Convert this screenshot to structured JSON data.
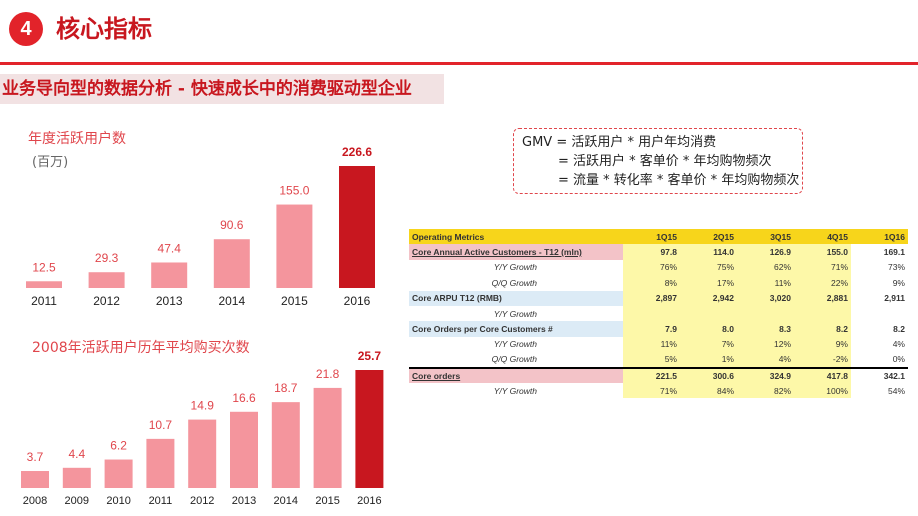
{
  "header": {
    "number": "4",
    "title": "核心指标"
  },
  "subtitle": "业务导向型的数据分析 - 快速成长中的消费驱动型企业",
  "chart1": {
    "title": "年度活跃用户数",
    "unit": "(百万)"
  },
  "chart2": {
    "title": "2008年活跃用户历年平均购买次数"
  },
  "colors": {
    "accent": "#e2232a",
    "bar_light": "#f4959d",
    "bar_dark": "#c8171f",
    "header_yellow": "#f7d51b"
  },
  "chart_data": [
    {
      "type": "bar",
      "title": "年度活跃用户数",
      "ylabel": "(百万)",
      "categories": [
        "2011",
        "2012",
        "2013",
        "2014",
        "2015",
        "2016"
      ],
      "values": [
        12.5,
        29.3,
        47.4,
        90.6,
        155.0,
        226.6
      ],
      "labels": [
        "12.5",
        "29.3",
        "47.4",
        "90.6",
        "155.0",
        "226.6"
      ],
      "highlight_last": true,
      "ylim": [
        0,
        226.6
      ],
      "grid": false
    },
    {
      "type": "bar",
      "title": "2008年活跃用户历年平均购买次数",
      "categories": [
        "2008",
        "2009",
        "2010",
        "2011",
        "2012",
        "2013",
        "2014",
        "2015",
        "2016"
      ],
      "values": [
        3.7,
        4.4,
        6.2,
        10.7,
        14.9,
        16.6,
        18.7,
        21.8,
        25.7
      ],
      "labels": [
        "3.7",
        "4.4",
        "6.2",
        "10.7",
        "14.9",
        "16.6",
        "18.7",
        "21.8",
        "25.7"
      ],
      "highlight_last": true,
      "ylim": [
        0,
        25.7
      ],
      "grid": false
    }
  ],
  "formula": {
    "line1": "GMV = 活跃用户 * 用户年均消费",
    "line2": "= 活跃用户 * 客单价 * 年均购物频次",
    "line3": "= 流量 * 转化率 * 客单价 * 年均购物频次"
  },
  "table": {
    "header": [
      "Operating Metrics",
      "1Q15",
      "2Q15",
      "3Q15",
      "4Q15",
      "1Q16"
    ],
    "rows": [
      {
        "label": "Core Annual Active Customers - T12 (mln)",
        "cells": [
          "97.8",
          "114.0",
          "126.9",
          "155.0",
          "169.1"
        ]
      },
      {
        "label": "Y/Y Growth",
        "cells": [
          "76%",
          "75%",
          "62%",
          "71%",
          "73%"
        ]
      },
      {
        "label": "Q/Q Growth",
        "cells": [
          "8%",
          "17%",
          "11%",
          "22%",
          "9%"
        ]
      },
      {
        "label": "Core ARPU T12 (RMB)",
        "cells": [
          "2,897",
          "2,942",
          "3,020",
          "2,881",
          "2,911"
        ]
      },
      {
        "label": "Y/Y Growth",
        "cells": [
          "",
          "",
          "",
          "",
          ""
        ]
      },
      {
        "label": "Core Orders per Core Customers #",
        "cells": [
          "7.9",
          "8.0",
          "8.3",
          "8.2",
          "8.2"
        ]
      },
      {
        "label": "Y/Y Growth",
        "cells": [
          "11%",
          "7%",
          "12%",
          "9%",
          "4%"
        ]
      },
      {
        "label": "Q/Q Growth",
        "cells": [
          "5%",
          "1%",
          "4%",
          "-2%",
          "0%"
        ]
      },
      {
        "label": "Core orders",
        "cells": [
          "221.5",
          "300.6",
          "324.9",
          "417.8",
          "342.1"
        ]
      },
      {
        "label": "Y/Y Growth",
        "cells": [
          "71%",
          "84%",
          "82%",
          "100%",
          "54%"
        ]
      }
    ]
  }
}
